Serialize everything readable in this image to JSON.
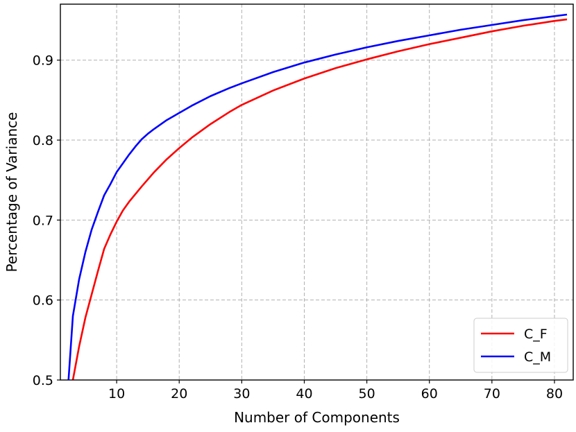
{
  "chart_data": {
    "type": "line",
    "title": "",
    "xlabel": "Number of Components",
    "ylabel": "Percentage of Variance",
    "xlim": [
      1,
      83
    ],
    "ylim": [
      0.5,
      0.97
    ],
    "xticks": [
      10,
      20,
      30,
      40,
      50,
      60,
      70,
      80
    ],
    "yticks": [
      0.5,
      0.6,
      0.7,
      0.8,
      0.9
    ],
    "ytick_labels": [
      "0.5",
      "0.6",
      "0.7",
      "0.8",
      "0.9"
    ],
    "grid": true,
    "legend_position": "lower-right",
    "series": [
      {
        "name": "C_F",
        "color": "#ff0000",
        "x": [
          3,
          4,
          5,
          6,
          7,
          8,
          9,
          10,
          11,
          12,
          14,
          16,
          18,
          20,
          22,
          25,
          28,
          30,
          35,
          40,
          45,
          50,
          55,
          60,
          65,
          70,
          75,
          80,
          82
        ],
        "y": [
          0.5,
          0.542,
          0.578,
          0.607,
          0.636,
          0.664,
          0.682,
          0.698,
          0.712,
          0.723,
          0.742,
          0.76,
          0.776,
          0.79,
          0.803,
          0.82,
          0.835,
          0.844,
          0.862,
          0.877,
          0.89,
          0.901,
          0.911,
          0.92,
          0.928,
          0.936,
          0.943,
          0.949,
          0.951
        ]
      },
      {
        "name": "C_M",
        "color": "#0000ff",
        "x": [
          2.3,
          3,
          4,
          5,
          6,
          7,
          8,
          9,
          10,
          11,
          12,
          13,
          14,
          15,
          16,
          18,
          20,
          22,
          25,
          28,
          30,
          35,
          40,
          45,
          50,
          55,
          60,
          65,
          70,
          75,
          80,
          82
        ],
        "y": [
          0.5,
          0.58,
          0.626,
          0.66,
          0.688,
          0.71,
          0.731,
          0.745,
          0.76,
          0.771,
          0.782,
          0.792,
          0.801,
          0.808,
          0.814,
          0.825,
          0.834,
          0.843,
          0.855,
          0.865,
          0.871,
          0.885,
          0.897,
          0.907,
          0.916,
          0.924,
          0.931,
          0.938,
          0.944,
          0.95,
          0.955,
          0.957
        ]
      }
    ]
  }
}
